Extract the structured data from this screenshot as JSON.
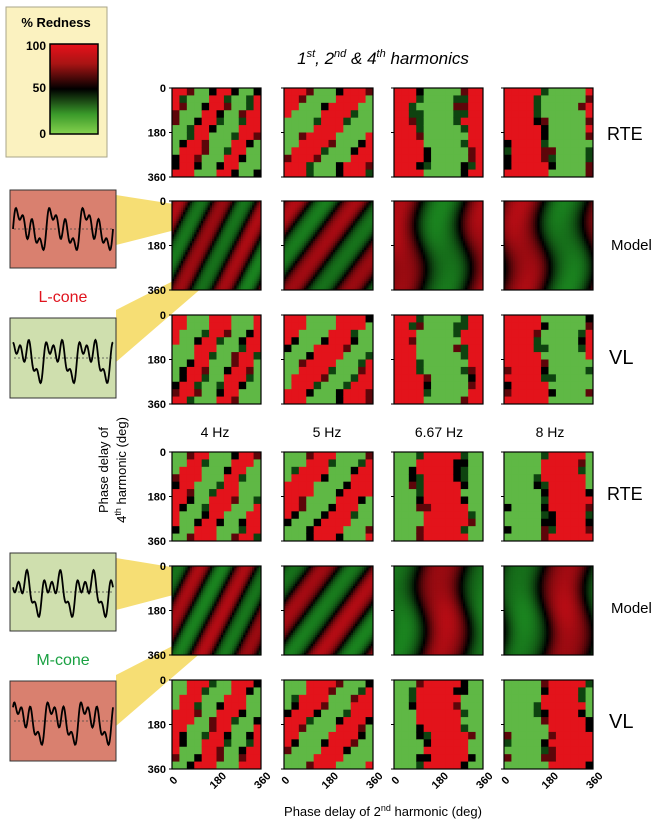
{
  "title": {
    "pre": "1",
    "sup1": "st",
    "mid1": ", 2",
    "sup2": "nd",
    "mid2": " & 4",
    "sup3": "th",
    "post": " harmonics"
  },
  "legend": {
    "title": "% Redness",
    "ticks": [
      "100",
      "50",
      "0"
    ],
    "colors": {
      "top": "#e8101a",
      "mid": "#000000",
      "bottom": "#7ed04a"
    }
  },
  "waveforms": {
    "l_cone_label": "L-cone",
    "m_cone_label": "M-cone",
    "colors": {
      "red_box": "#d9806f",
      "green_box": "#cfdfae",
      "l_text": "#e0141e",
      "m_text": "#1aa142"
    }
  },
  "frequencies": [
    "4 Hz",
    "5 Hz",
    "6.67 Hz",
    "8 Hz"
  ],
  "row_labels": [
    "RTE",
    "Model",
    "VL",
    "RTE",
    "Model",
    "VL"
  ],
  "axes": {
    "ylabel_line1": "Phase delay of",
    "ylabel_line2_pre": "4",
    "ylabel_line2_sup": "th",
    "ylabel_line2_post": " harmonic (deg)",
    "xlabel_pre": "Phase delay of 2",
    "xlabel_sup": "nd",
    "xlabel_post": " harmonic (deg)",
    "yticks": [
      "0",
      "180",
      "360"
    ],
    "xticks": [
      "0",
      "180",
      "360"
    ]
  },
  "chart_data": {
    "type": "heatmap",
    "x_range": [
      0,
      360
    ],
    "y_range": [
      0,
      360
    ],
    "value_range": [
      0,
      100
    ],
    "colorscale": [
      "#22a828",
      "#000000",
      "#e8101a"
    ]
  }
}
